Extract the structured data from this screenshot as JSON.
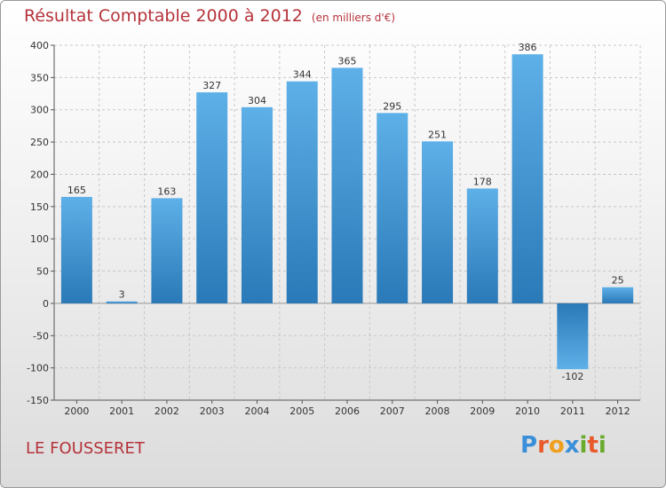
{
  "chart_data": {
    "type": "bar",
    "title": "Résultat Comptable 2000 à 2012",
    "subtitle": "(en milliers d'€)",
    "categories": [
      "2000",
      "2001",
      "2002",
      "2003",
      "2004",
      "2005",
      "2006",
      "2007",
      "2008",
      "2009",
      "2010",
      "2011",
      "2012"
    ],
    "values": [
      165,
      3,
      163,
      327,
      304,
      344,
      365,
      295,
      251,
      178,
      386,
      -102,
      25
    ],
    "value_labels": [
      "165",
      "3",
      "163",
      "327",
      "304",
      "344",
      "365",
      "295",
      "251",
      "178",
      "386",
      "-102",
      "25"
    ],
    "xlabel": "",
    "ylabel": "",
    "ylim": [
      -150,
      400
    ],
    "yticks": [
      -150,
      -100,
      -50,
      0,
      50,
      100,
      150,
      200,
      250,
      300,
      350,
      400
    ],
    "ytick_labels": [
      "-150",
      "-100",
      "-50",
      "0",
      "50",
      "100",
      "150",
      "200",
      "250",
      "300",
      "350",
      "400"
    ],
    "grid": true,
    "colors": {
      "bar_light": "#5eb0e8",
      "bar_dark": "#2a79b8",
      "title": "#b5333b"
    }
  },
  "footer": {
    "commune": "LE FOUSSERET"
  },
  "logo": {
    "text": "Proxiti",
    "letters": [
      {
        "ch": "P",
        "color": "#3a8fd9"
      },
      {
        "ch": "r",
        "color": "#e85a2a"
      },
      {
        "ch": "o",
        "color": "#f0a020"
      },
      {
        "ch": "x",
        "color": "#3a8fd9"
      },
      {
        "ch": "i",
        "color": "#6aab2e"
      },
      {
        "ch": "t",
        "color": "#e85a2a"
      },
      {
        "ch": "i",
        "color": "#6aab2e"
      }
    ]
  }
}
